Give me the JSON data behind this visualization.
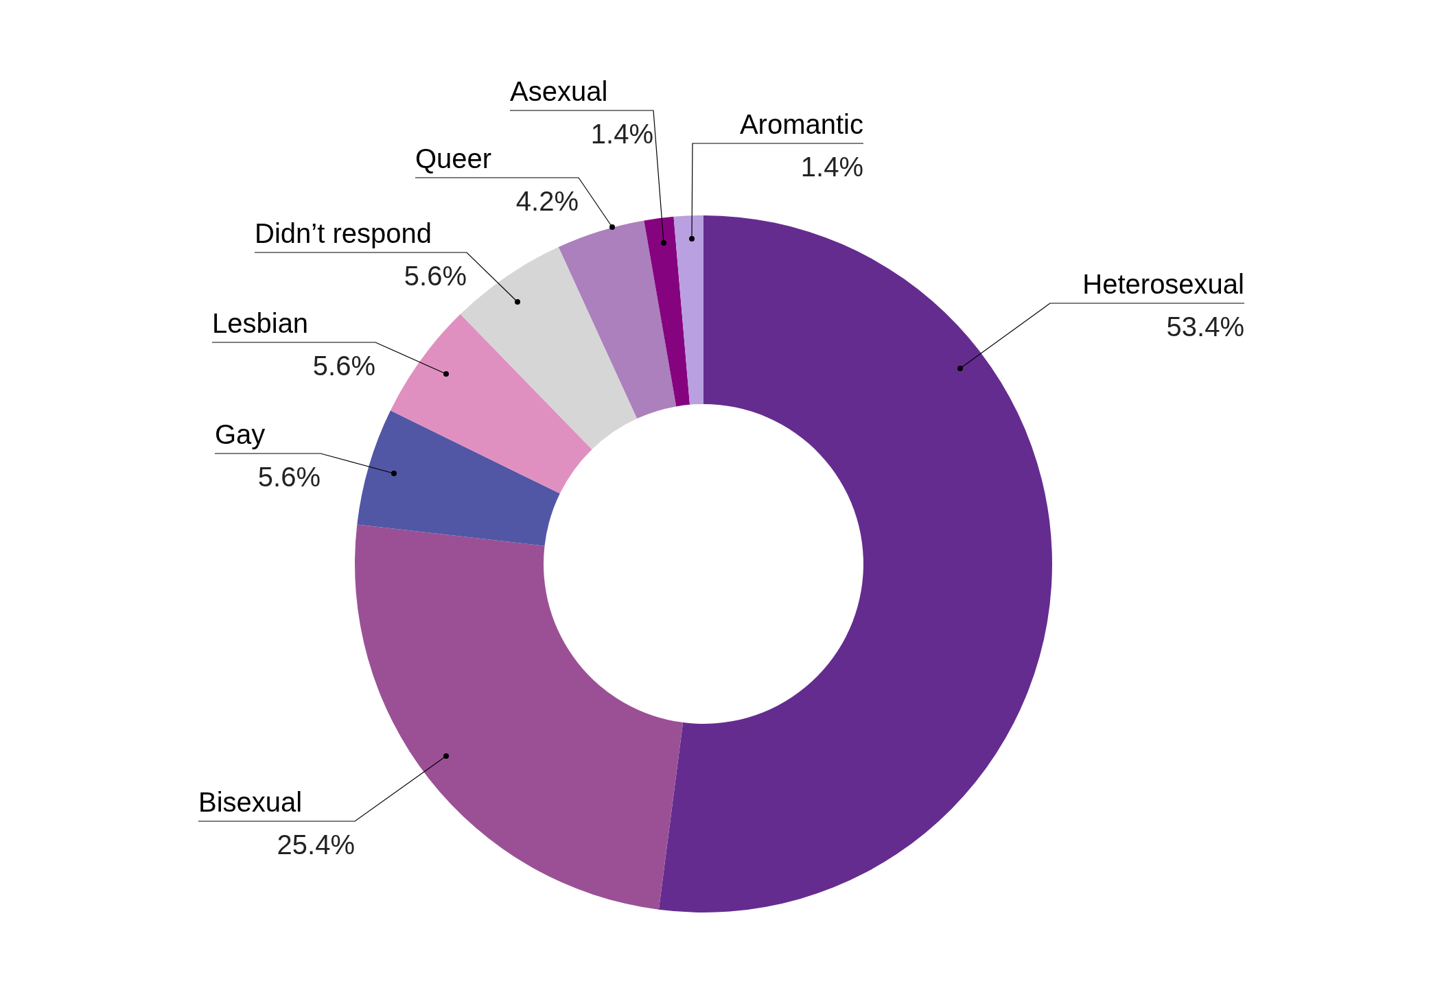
{
  "chart_data": {
    "type": "donut",
    "categories": [
      "Heterosexual",
      "Bisexual",
      "Gay",
      "Lesbian",
      "Didn’t respond",
      "Queer",
      "Asexual",
      "Aromantic"
    ],
    "values": [
      53.4,
      25.4,
      5.6,
      5.6,
      5.6,
      4.2,
      1.4,
      1.4
    ],
    "value_labels": [
      "53.4%",
      "25.4%",
      "5.6%",
      "5.6%",
      "5.6%",
      "4.2%",
      "1.4%",
      "1.4%"
    ],
    "colors": [
      "#652c8f",
      "#9b5096",
      "#5157a5",
      "#e090c0",
      "#d6d6d6",
      "#ab80bd",
      "#86037f",
      "#b9a0e0"
    ]
  }
}
